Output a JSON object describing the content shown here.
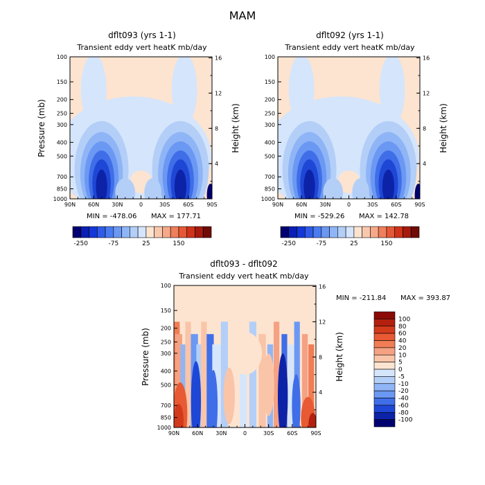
{
  "figure_title": "MAM",
  "chart_data": [
    {
      "type": "heatmap",
      "title": "dflt093 (yrs 1-1)",
      "subtitle": "Transient eddy vert heatK mb/day",
      "ylabel": "Pressure (mb)",
      "ylabel_right": "Height (km)",
      "x_ticks": [
        "90N",
        "60N",
        "30N",
        "0",
        "30S",
        "60S",
        "90S"
      ],
      "y_ticks": [
        "100",
        "150",
        "200",
        "250",
        "300",
        "400",
        "500",
        "700",
        "850",
        "1000"
      ],
      "y_ticks_right": [
        "16",
        "12",
        "8",
        "4"
      ],
      "xlim": [
        90,
        -90
      ],
      "ylim": [
        1000,
        100
      ],
      "min_label": "MIN = -478.06",
      "max_label": "MAX = 177.71",
      "colorbar": {
        "orientation": "horizontal",
        "labels": [
          "-250",
          "-75",
          "25",
          "150"
        ],
        "colors": [
          "#000070",
          "#0a1fb4",
          "#1437d8",
          "#2f5be6",
          "#4a7cf0",
          "#6b98f3",
          "#8fb5f6",
          "#b3cff8",
          "#d5e5fb",
          "#fde4d0",
          "#f8c8ae",
          "#f5a98a",
          "#f07f5c",
          "#e55837",
          "#cf3319",
          "#a51b0e",
          "#700b05"
        ]
      },
      "field_description": "Strongly negative (blue) values in the lower troposphere over both hemisphere midlatitudes (~30-70N and ~30-70S), weakly positive (peach) in the upper troposphere"
    },
    {
      "type": "heatmap",
      "title": "dflt092 (yrs 1-1)",
      "subtitle": "Transient eddy vert heatK mb/day",
      "ylabel": "Pressure (mb)",
      "ylabel_right": "Height (km)",
      "x_ticks": [
        "90N",
        "60N",
        "30N",
        "0",
        "30S",
        "60S",
        "90S"
      ],
      "y_ticks": [
        "100",
        "150",
        "200",
        "250",
        "300",
        "400",
        "500",
        "700",
        "850",
        "1000"
      ],
      "y_ticks_right": [
        "16",
        "12",
        "8",
        "4"
      ],
      "xlim": [
        90,
        -90
      ],
      "ylim": [
        1000,
        100
      ],
      "min_label": "MIN = -529.26",
      "max_label": "MAX = 142.78",
      "colorbar": {
        "orientation": "horizontal",
        "labels": [
          "-250",
          "-75",
          "25",
          "150"
        ],
        "colors": [
          "#000070",
          "#0a1fb4",
          "#1437d8",
          "#2f5be6",
          "#4a7cf0",
          "#6b98f3",
          "#8fb5f6",
          "#b3cff8",
          "#d5e5fb",
          "#fde4d0",
          "#f8c8ae",
          "#f5a98a",
          "#f07f5c",
          "#e55837",
          "#cf3319",
          "#a51b0e",
          "#700b05"
        ]
      }
    },
    {
      "type": "heatmap",
      "title": "dflt093 - dflt092",
      "subtitle": "Transient eddy vert heatK mb/day",
      "ylabel": "Pressure (mb)",
      "ylabel_right": "Height (km)",
      "x_ticks": [
        "90N",
        "60N",
        "30N",
        "0",
        "30S",
        "60S",
        "90S"
      ],
      "y_ticks": [
        "100",
        "150",
        "200",
        "250",
        "300",
        "400",
        "500",
        "700",
        "850",
        "1000"
      ],
      "y_ticks_right": [
        "16",
        "12",
        "8",
        "4"
      ],
      "xlim": [
        90,
        -90
      ],
      "ylim": [
        1000,
        100
      ],
      "min_label": "MIN = -211.84",
      "max_label": "MAX = 393.87",
      "colorbar": {
        "orientation": "vertical",
        "labels": [
          "100",
          "80",
          "60",
          "40",
          "20",
          "10",
          "5",
          "0",
          "-5",
          "-10",
          "-20",
          "-40",
          "-60",
          "-80",
          "-100"
        ],
        "colors": [
          "#8b0a05",
          "#b3200f",
          "#d23a1c",
          "#e85a33",
          "#f07d55",
          "#f5a183",
          "#f9c4a8",
          "#fde4d0",
          "#d5e5fb",
          "#b3cff8",
          "#8fb5f6",
          "#6b98f3",
          "#3f6ee8",
          "#1f47d6",
          "#0c23a8",
          "#000070"
        ]
      }
    }
  ]
}
